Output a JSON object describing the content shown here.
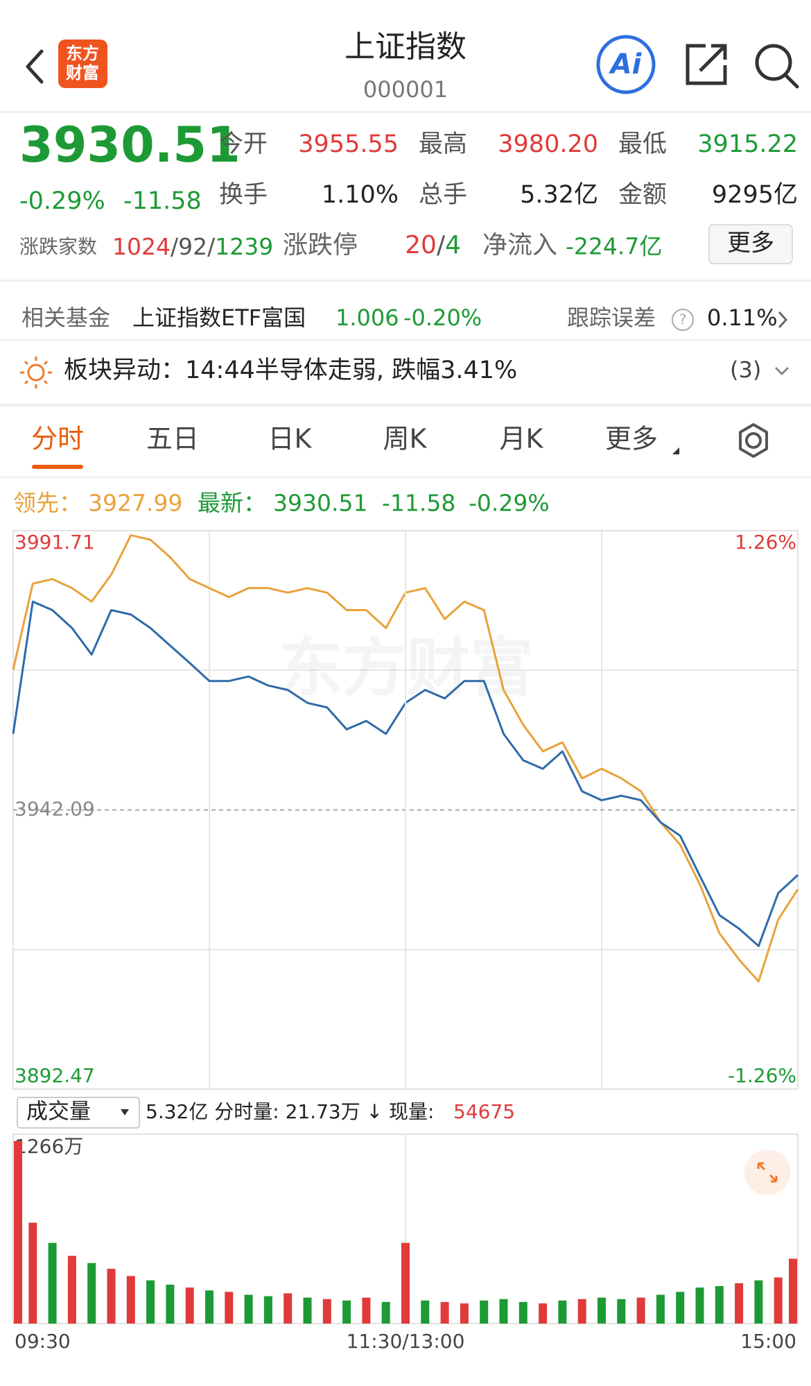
{
  "header": {
    "logo": [
      "东方",
      "财富"
    ],
    "title": "上证指数",
    "code": "000001",
    "ai_label": "Ai"
  },
  "quote": {
    "price": "3930.51",
    "change_pct": "-0.29%",
    "change": "-11.58",
    "stats": [
      {
        "label": "今开",
        "value": "3955.55"
      },
      {
        "label": "最高",
        "value": "3980.20"
      },
      {
        "label": "最低",
        "value": "3915.22"
      },
      {
        "label": "换手",
        "value": "1.10%"
      },
      {
        "label": "总手",
        "value": "5.32亿"
      },
      {
        "label": "金额",
        "value": "9295亿"
      }
    ],
    "breadth_label": "涨跌家数",
    "breadth": [
      "1024",
      "/92/",
      "1239"
    ],
    "limit_label": "涨跌停",
    "limit": [
      "20",
      "/",
      "4"
    ],
    "inflow_label": "净流入",
    "inflow": "-224.7亿",
    "more": "更多"
  },
  "fund": {
    "label": "相关基金",
    "name": "上证指数ETF富国",
    "nav": "1.006",
    "nav_change": "-0.20%",
    "error_label": "跟踪误差",
    "help": "?",
    "error": "0.11%"
  },
  "alert": {
    "text": "板块异动：14:44半导体走弱, 跌幅3.41%",
    "count": "(3)"
  },
  "tabs": [
    "分时",
    "五日",
    "日K",
    "周K",
    "月K",
    "更多"
  ],
  "legend": {
    "lead_value": "3927.99",
    "latest_value": "3930.51",
    "change": "-11.58",
    "change_pct": "-0.29%"
  },
  "watermark": "东方财富",
  "volume_bar": {
    "selector": "成交量",
    "info": "5.32亿 分时量: 21.73万 ↓ 现量:",
    "current": "54675"
  },
  "chart_data": [
    {
      "type": "line",
      "x": [
        0,
        6,
        12,
        18,
        24,
        30,
        36,
        42,
        48,
        54,
        60,
        66,
        72,
        78,
        84,
        90,
        96,
        102,
        108,
        114,
        120,
        126,
        132,
        138,
        144,
        150,
        156,
        162,
        168,
        174,
        180,
        186,
        192,
        198,
        204,
        210,
        216,
        222,
        228,
        234,
        240
      ],
      "xlim": [
        0,
        240
      ],
      "series": [
        {
          "name": "领先：",
          "color": "#e8a23a",
          "values": [
            3967.0,
            3982.3,
            3983.1,
            3981.5,
            3979.1,
            3983.9,
            3990.9,
            3990.1,
            3987.0,
            3983.1,
            3981.5,
            3979.9,
            3981.5,
            3981.5,
            3980.7,
            3981.5,
            3980.7,
            3977.6,
            3977.6,
            3974.4,
            3980.7,
            3981.5,
            3976.0,
            3979.1,
            3977.6,
            3963.4,
            3957.2,
            3952.5,
            3954.1,
            3947.7,
            3949.4,
            3947.7,
            3945.4,
            3939.9,
            3935.9,
            3928.9,
            3920.2,
            3915.5,
            3911.6,
            3922.6,
            3927.99
          ]
        },
        {
          "name": "最新：",
          "color": "#2f6aa8",
          "values": [
            3955.6,
            3979.1,
            3977.6,
            3974.4,
            3969.7,
            3977.6,
            3976.8,
            3974.4,
            3971.3,
            3968.2,
            3965.0,
            3965.0,
            3965.8,
            3964.2,
            3963.4,
            3961.1,
            3960.3,
            3956.4,
            3957.9,
            3955.6,
            3961.1,
            3963.4,
            3961.9,
            3965.0,
            3965.0,
            3955.6,
            3950.9,
            3949.4,
            3952.5,
            3945.4,
            3943.8,
            3944.6,
            3943.8,
            3939.9,
            3937.5,
            3930.4,
            3923.4,
            3921.0,
            3917.9,
            3927.3,
            3930.51
          ]
        }
      ],
      "ylim": [
        3892.47,
        3991.71
      ],
      "yticks": [
        3892.47,
        3942.09,
        3991.71
      ],
      "ytick_colors": [
        "#1d9a35",
        "#888888",
        "#e03a3a"
      ],
      "y2lim": [
        -1.26,
        1.26
      ],
      "y2ticks": [
        {
          "value": -1.26,
          "label": "-1.26%"
        },
        {
          "value": 1.26,
          "label": "1.26%"
        }
      ],
      "y2tick_colors": [
        "#1d9a35",
        "#e03a3a"
      ]
    },
    {
      "type": "bar",
      "x": [
        0,
        6,
        12,
        18,
        24,
        30,
        36,
        42,
        48,
        54,
        60,
        66,
        72,
        78,
        84,
        90,
        96,
        102,
        108,
        114,
        120,
        126,
        132,
        138,
        144,
        150,
        156,
        162,
        168,
        174,
        180,
        186,
        192,
        198,
        204,
        210,
        216,
        222,
        228,
        234,
        240
      ],
      "xlim": [
        0,
        240
      ],
      "values": [
        1266,
        700,
        560,
        470,
        420,
        380,
        330,
        300,
        270,
        250,
        230,
        220,
        200,
        190,
        210,
        180,
        170,
        160,
        180,
        150,
        560,
        160,
        150,
        140,
        160,
        170,
        150,
        140,
        160,
        170,
        180,
        170,
        180,
        200,
        220,
        250,
        260,
        280,
        300,
        320,
        450
      ],
      "colors": [
        "#e03a3a",
        "#e03a3a",
        "#1d9a35",
        "#e03a3a",
        "#1d9a35",
        "#e03a3a",
        "#e03a3a",
        "#1d9a35",
        "#1d9a35",
        "#e03a3a",
        "#1d9a35",
        "#e03a3a",
        "#1d9a35",
        "#1d9a35",
        "#e03a3a",
        "#1d9a35",
        "#e03a3a",
        "#1d9a35",
        "#e03a3a",
        "#1d9a35",
        "#e03a3a",
        "#1d9a35",
        "#e03a3a",
        "#e03a3a",
        "#1d9a35",
        "#1d9a35",
        "#1d9a35",
        "#e03a3a",
        "#1d9a35",
        "#e03a3a",
        "#1d9a35",
        "#1d9a35",
        "#e03a3a",
        "#1d9a35",
        "#1d9a35",
        "#1d9a35",
        "#1d9a35",
        "#e03a3a",
        "#1d9a35",
        "#e03a3a",
        "#e03a3a"
      ],
      "ylim": [
        0,
        1266
      ],
      "yticks": [
        {
          "value": 1266,
          "label": "1266万"
        }
      ],
      "xticks": [
        {
          "value": 0,
          "label": "09:30"
        },
        {
          "value": 120,
          "label": "11:30/13:00"
        },
        {
          "value": 240,
          "label": "15:00"
        }
      ]
    }
  ]
}
